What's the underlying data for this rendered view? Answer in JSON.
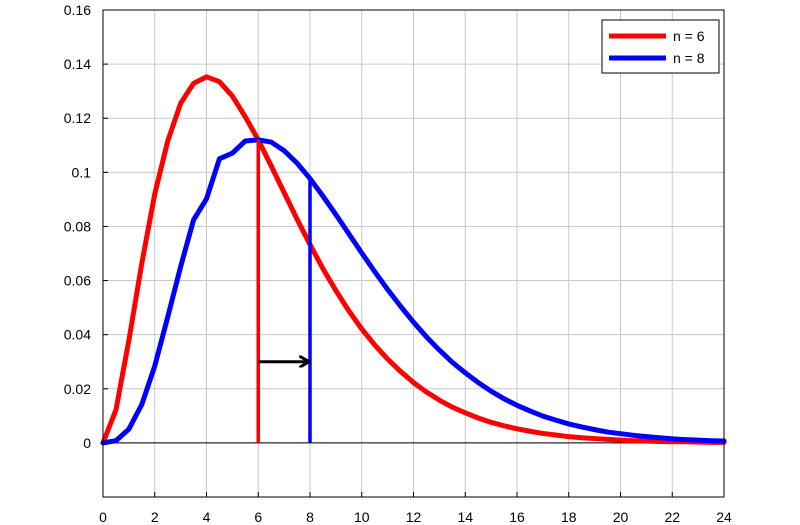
{
  "chart_data": {
    "type": "line",
    "title": "",
    "xlabel": "",
    "ylabel": "",
    "xlim": [
      0,
      24
    ],
    "ylim": [
      -0.02,
      0.16
    ],
    "xticks": [
      "0",
      "2",
      "4",
      "6",
      "8",
      "10",
      "12",
      "14",
      "16",
      "18",
      "20",
      "22",
      "24"
    ],
    "yticks": [
      "0",
      "0.02",
      "0.04",
      "0.06",
      "0.08",
      "0.1",
      "0.12",
      "0.14",
      "0.16"
    ],
    "grid": true,
    "legend_position": "top-right",
    "x": [
      0,
      0.5,
      1,
      1.5,
      2,
      2.5,
      3,
      3.5,
      4,
      4.5,
      5,
      5.5,
      6,
      6.5,
      7,
      7.5,
      8,
      8.5,
      9,
      9.5,
      10,
      10.5,
      11,
      11.5,
      12,
      12.5,
      13,
      13.5,
      14,
      14.5,
      15,
      15.5,
      16,
      16.5,
      17,
      17.5,
      18,
      18.5,
      19,
      19.5,
      20,
      20.5,
      21,
      21.5,
      22,
      22.5,
      23,
      23.5,
      24
    ],
    "series": [
      {
        "name": "n = 6",
        "color": "#ff0000",
        "values": [
          0,
          0.0122,
          0.0379,
          0.0664,
          0.092,
          0.1115,
          0.1255,
          0.1329,
          0.1353,
          0.1335,
          0.1282,
          0.1205,
          0.112,
          0.1024,
          0.0925,
          0.0827,
          0.0733,
          0.0644,
          0.0563,
          0.0488,
          0.0421,
          0.0362,
          0.031,
          0.0264,
          0.0223,
          0.0188,
          0.0158,
          0.0132,
          0.0111,
          0.0092,
          0.0076,
          0.0063,
          0.0052,
          0.0043,
          0.0035,
          0.0029,
          0.0023,
          0.0019,
          0.0016,
          0.0013,
          0.001,
          0.0008,
          0.0007,
          0.0005,
          0.0004,
          0.0004,
          0.0003,
          0.0002,
          0.0002
        ]
      },
      {
        "name": "n = 8",
        "color": "#0000ff",
        "values": [
          0,
          0.0008,
          0.0051,
          0.0142,
          0.0284,
          0.0465,
          0.0651,
          0.0824,
          0.0902,
          0.105,
          0.1071,
          0.1116,
          0.112,
          0.1112,
          0.108,
          0.1034,
          0.0977,
          0.0912,
          0.0844,
          0.0773,
          0.0702,
          0.0633,
          0.0567,
          0.0505,
          0.0446,
          0.0392,
          0.0343,
          0.0298,
          0.0259,
          0.0223,
          0.0191,
          0.0163,
          0.0139,
          0.0118,
          0.0099,
          0.0084,
          0.007,
          0.0059,
          0.0049,
          0.004,
          0.0034,
          0.0028,
          0.0023,
          0.0019,
          0.0015,
          0.0012,
          0.001,
          0.0008,
          0.0007
        ]
      }
    ],
    "annotations": [
      {
        "type": "vertical-line",
        "x": 6,
        "y": 0.112,
        "color": "#ff0000"
      },
      {
        "type": "vertical-line",
        "x": 8,
        "y": 0.0977,
        "color": "#0000ff"
      },
      {
        "type": "arrow",
        "from": [
          6,
          0.03
        ],
        "to": [
          8,
          0.03
        ],
        "color": "#000000"
      }
    ]
  }
}
